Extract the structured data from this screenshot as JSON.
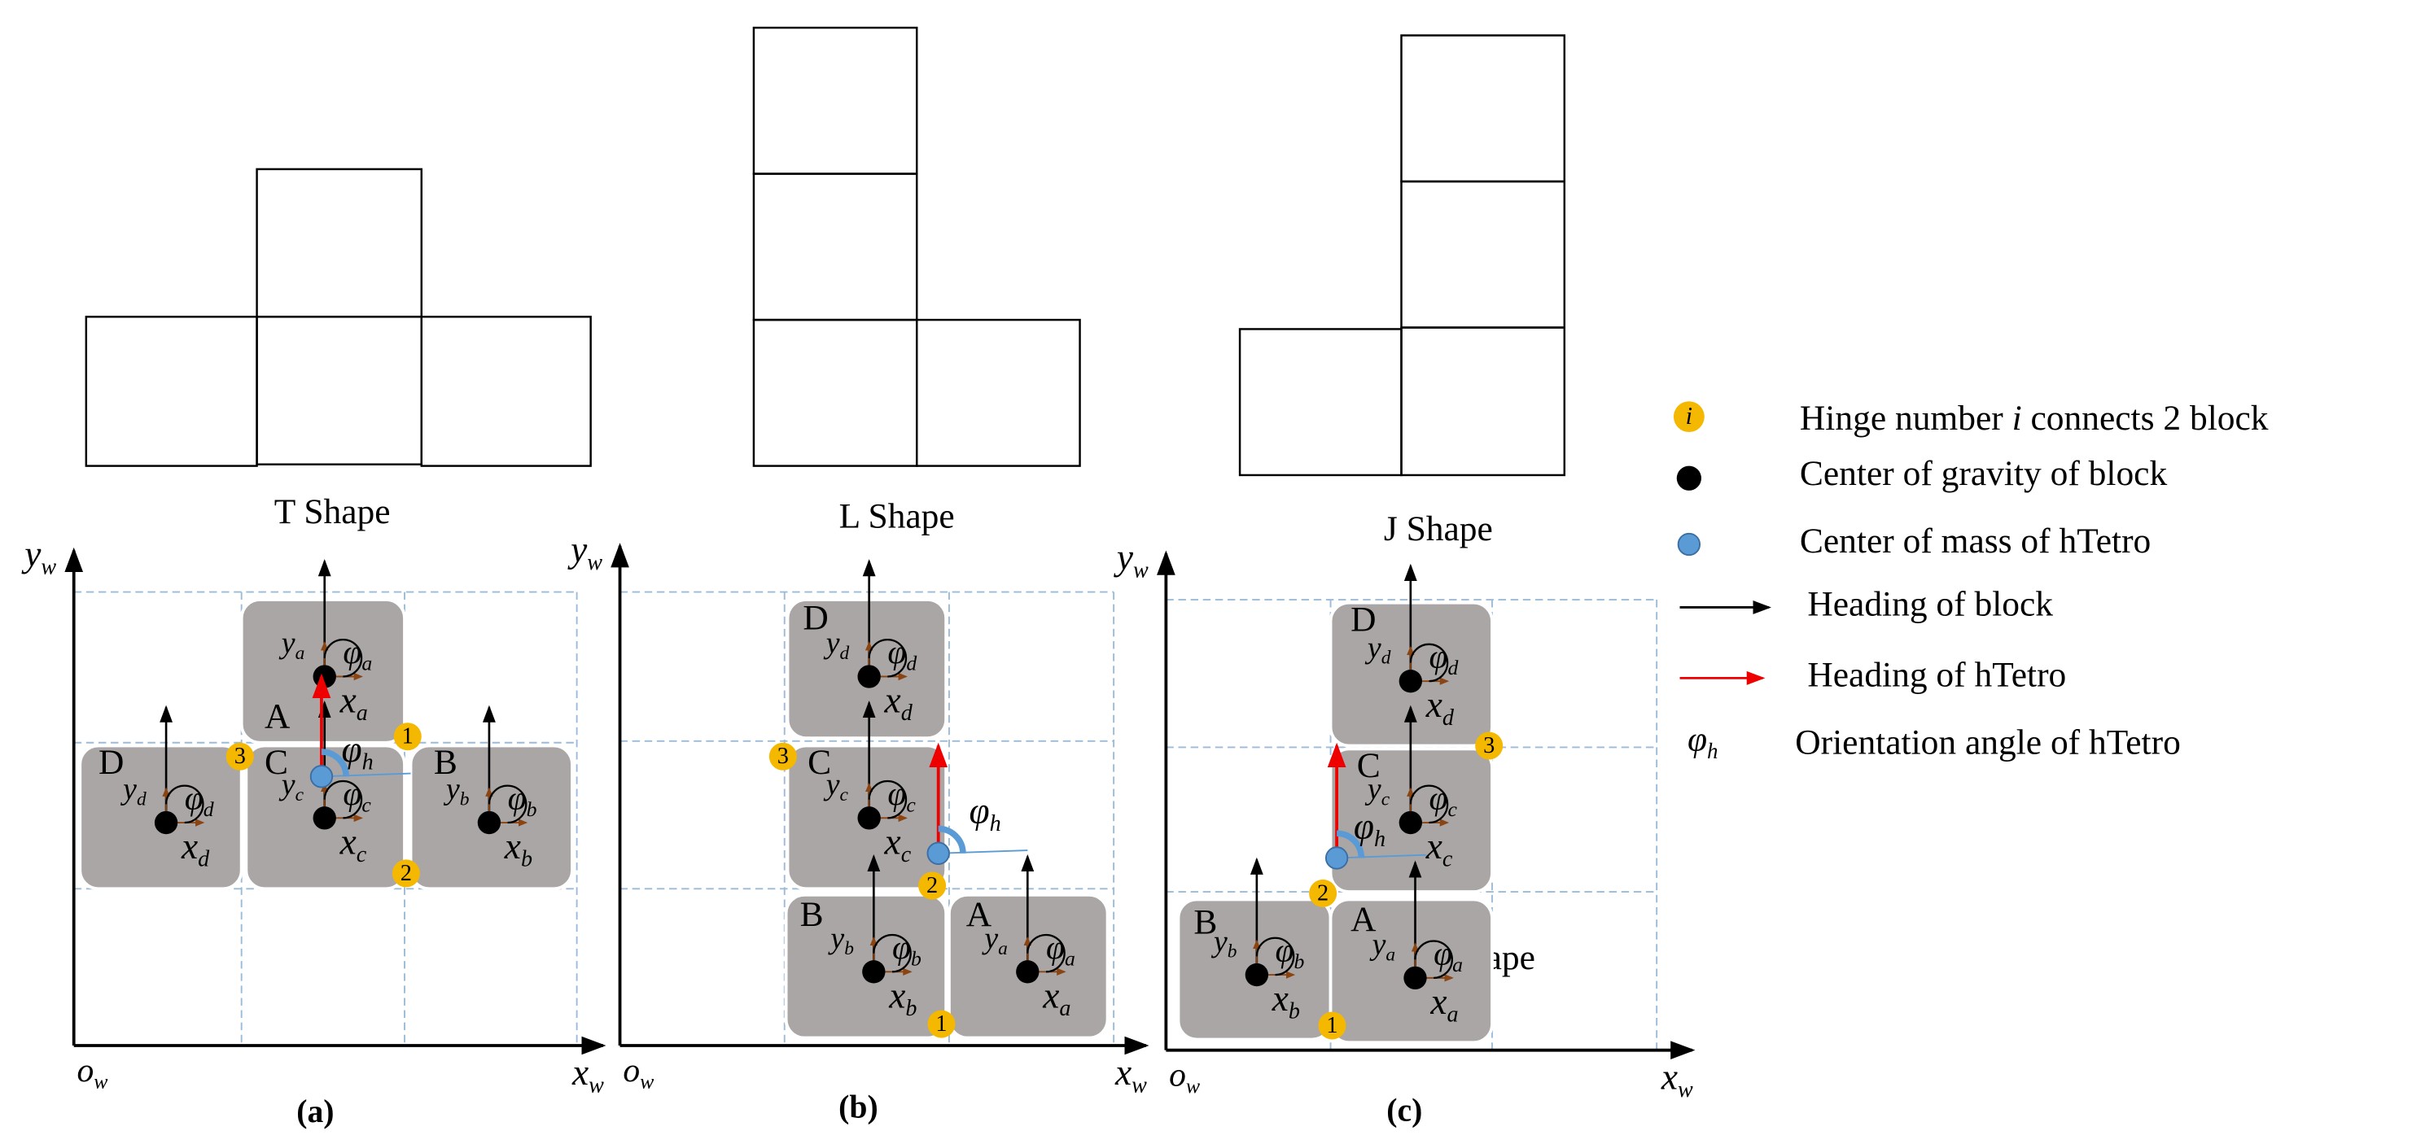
{
  "shape_titles": [
    "T Shape",
    "L Shape",
    "J Shape",
    "Z Shape"
  ],
  "panel_labels": [
    "(a)",
    "(b)",
    "(c)"
  ],
  "symbols": {
    "y": "y",
    "x": "x",
    "o": "o",
    "phi": "φ",
    "world": "w",
    "hetro": "h"
  },
  "panels": [
    {
      "blocks": [
        {
          "label": "A",
          "sub": "a"
        },
        {
          "label": "D",
          "sub": "d"
        },
        {
          "label": "C",
          "sub": "c"
        },
        {
          "label": "B",
          "sub": "b"
        }
      ],
      "hinges": [
        "1",
        "2",
        "3"
      ]
    },
    {
      "blocks": [
        {
          "label": "D",
          "sub": "d"
        },
        {
          "label": "C",
          "sub": "c"
        },
        {
          "label": "B",
          "sub": "b"
        },
        {
          "label": "A",
          "sub": "a"
        }
      ],
      "hinges": [
        "1",
        "2",
        "3"
      ]
    },
    {
      "blocks": [
        {
          "label": "D",
          "sub": "d"
        },
        {
          "label": "C",
          "sub": "c"
        },
        {
          "label": "B",
          "sub": "b"
        },
        {
          "label": "A",
          "sub": "a"
        }
      ],
      "hinges": [
        "1",
        "2",
        "3"
      ]
    }
  ],
  "legend": {
    "hinge_icon": "i",
    "hinge": [
      "Hinge number ",
      "i",
      " connects 2 block"
    ],
    "gravity": "Center of gravity of block",
    "mass": "Center of mass of hTetro",
    "heading_block": "Heading of block",
    "heading_hetro": "Heading of hTetro",
    "orientation": "Orientation angle of hTetro"
  }
}
